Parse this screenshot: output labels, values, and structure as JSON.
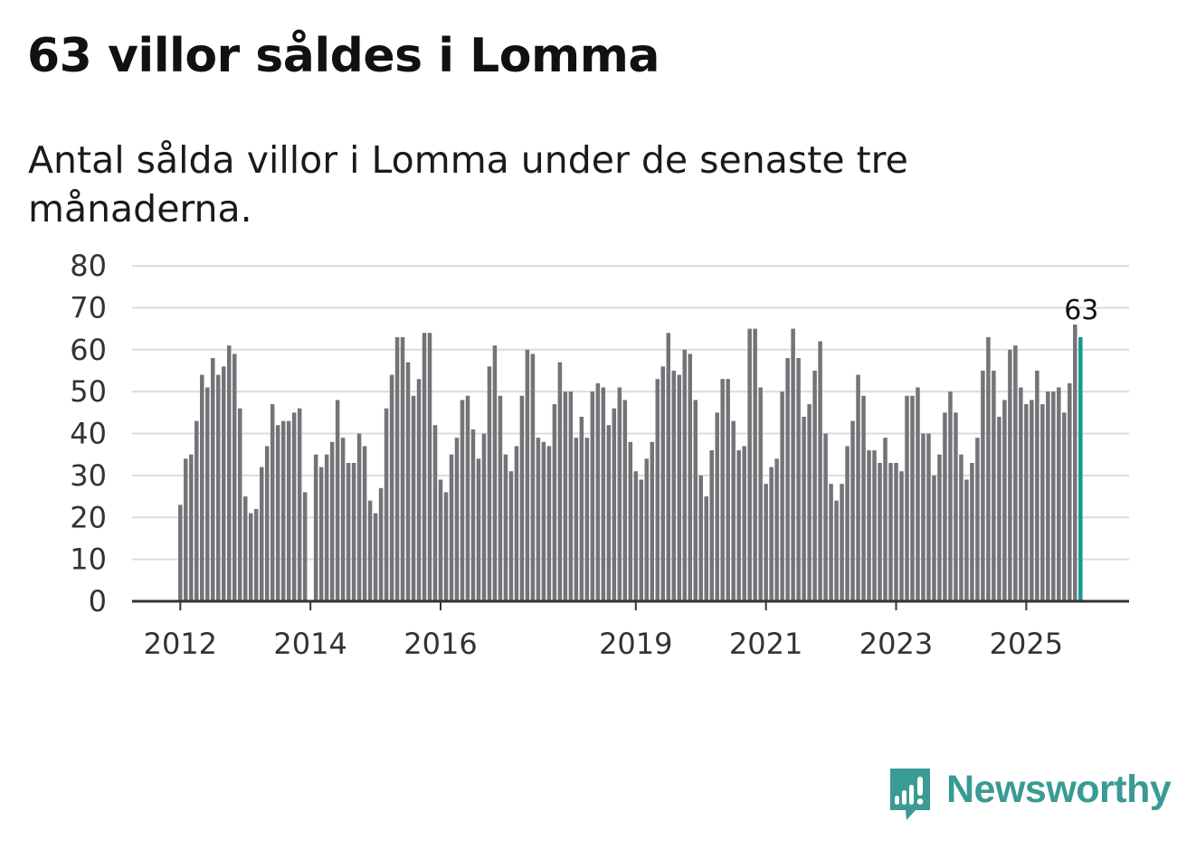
{
  "header": {
    "title": "63 villor såldes i Lomma",
    "subtitle": "Antal sålda villor i Lomma under de senaste tre månaderna."
  },
  "brand": {
    "name": "Newsworthy",
    "color": "#3a9a94",
    "icon": "bar-chart-speech-bubble-icon"
  },
  "chart_data": {
    "type": "bar",
    "title": "63 villor såldes i Lomma",
    "subtitle": "Antal sålda villor i Lomma under de senaste tre månaderna.",
    "xlabel": "",
    "ylabel": "",
    "ylim": [
      0,
      80
    ],
    "yticks": [
      0,
      10,
      20,
      30,
      40,
      50,
      60,
      70,
      80
    ],
    "grid": true,
    "start": "2012-01",
    "x_tick_labels": [
      {
        "label": "2012",
        "index": 0
      },
      {
        "label": "2014",
        "index": 24
      },
      {
        "label": "2016",
        "index": 48
      },
      {
        "label": "2019",
        "index": 84
      },
      {
        "label": "2021",
        "index": 108
      },
      {
        "label": "2023",
        "index": 132
      },
      {
        "label": "2025",
        "index": 156
      }
    ],
    "colors": {
      "bar": "#737378",
      "highlight": "#149990",
      "grid": "#dcdcdc",
      "axis": "#333333"
    },
    "highlight_index": 166,
    "annotation": {
      "index": 166,
      "text": "63"
    },
    "values": [
      23,
      34,
      35,
      43,
      54,
      51,
      58,
      54,
      56,
      61,
      59,
      46,
      25,
      21,
      22,
      32,
      37,
      47,
      42,
      43,
      43,
      45,
      46,
      26,
      null,
      35,
      32,
      35,
      38,
      48,
      39,
      33,
      33,
      40,
      37,
      24,
      21,
      27,
      46,
      54,
      63,
      63,
      57,
      49,
      53,
      64,
      64,
      42,
      29,
      26,
      35,
      39,
      48,
      49,
      41,
      34,
      40,
      56,
      61,
      49,
      35,
      31,
      37,
      49,
      60,
      59,
      39,
      38,
      37,
      47,
      57,
      50,
      50,
      39,
      44,
      39,
      50,
      52,
      51,
      42,
      46,
      51,
      48,
      38,
      31,
      29,
      34,
      38,
      53,
      56,
      64,
      55,
      54,
      60,
      59,
      48,
      30,
      25,
      36,
      45,
      53,
      53,
      43,
      36,
      37,
      65,
      65,
      51,
      28,
      32,
      34,
      50,
      58,
      65,
      58,
      44,
      47,
      55,
      62,
      40,
      28,
      24,
      28,
      37,
      43,
      54,
      49,
      36,
      36,
      33,
      39,
      33,
      33,
      31,
      49,
      49,
      51,
      40,
      40,
      30,
      35,
      45,
      50,
      45,
      35,
      29,
      33,
      39,
      55,
      63,
      55,
      44,
      48,
      60,
      61,
      51,
      47,
      48,
      55,
      47,
      50,
      50,
      51,
      45,
      52,
      66,
      63
    ]
  }
}
